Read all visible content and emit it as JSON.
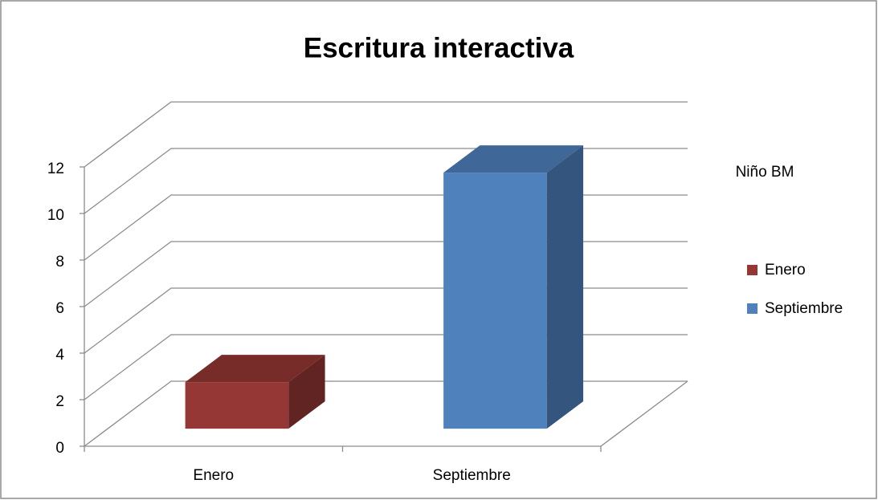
{
  "chart_data": {
    "type": "bar3d",
    "title": "Escritura interactiva",
    "categories": [
      "Enero",
      "Septiembre"
    ],
    "series": [
      {
        "name": "Niño BM",
        "values": [
          2,
          11
        ],
        "colors": [
          "#953735",
          "#4f81bd"
        ]
      }
    ],
    "ylim": [
      0,
      12
    ],
    "yticks": [
      0,
      2,
      4,
      6,
      8,
      10,
      12
    ],
    "grid": true,
    "legend": "right"
  }
}
